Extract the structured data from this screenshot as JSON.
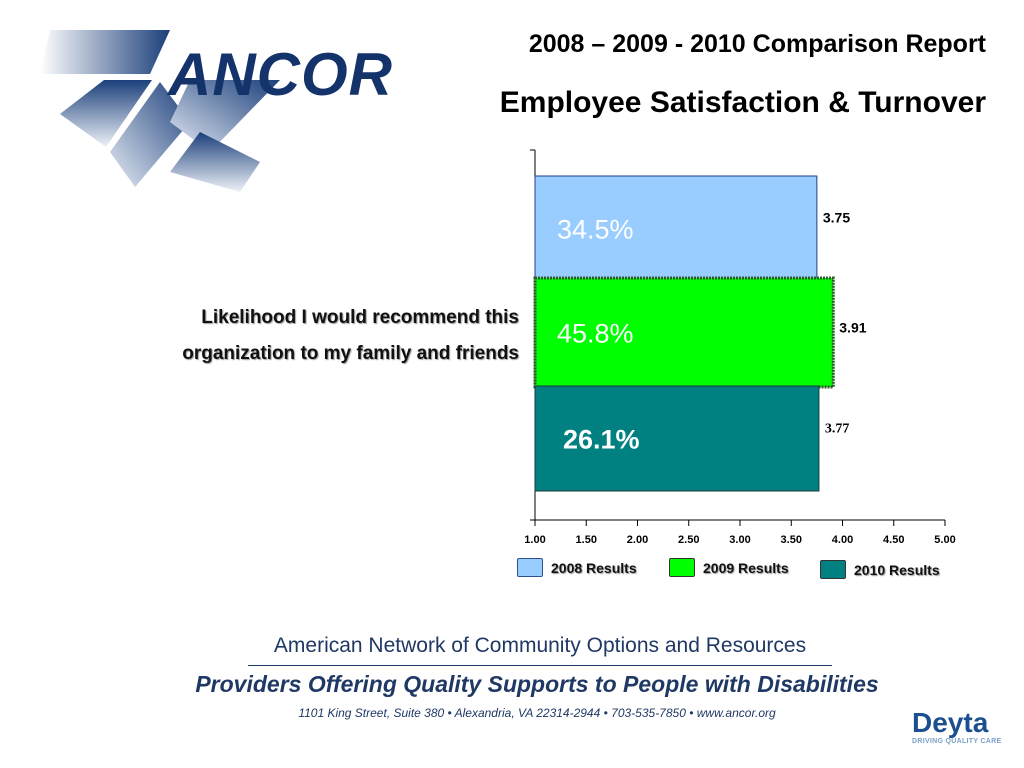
{
  "logo": {
    "text": "ANCOR"
  },
  "title": {
    "line1": "2008 – 2009 - 2010 Comparison Report",
    "line2": "Employee Satisfaction & Turnover"
  },
  "question": {
    "line1": "Likelihood I would recommend this",
    "line2": "organization to my family and friends"
  },
  "chart_data": {
    "type": "bar",
    "orientation": "horizontal",
    "title": "",
    "xlabel": "",
    "ylabel": "",
    "xlim": [
      1.0,
      5.0
    ],
    "x_ticks": [
      "1.00",
      "1.50",
      "2.00",
      "2.50",
      "3.00",
      "3.50",
      "4.00",
      "4.50",
      "5.00"
    ],
    "categories": [
      "Likelihood I would recommend this organization to my family and friends"
    ],
    "series": [
      {
        "name": "2008 Results",
        "value": 3.75,
        "value_label": "3.75",
        "inner_label": "34.5%",
        "color": "#99ccff"
      },
      {
        "name": "2009 Results",
        "value": 3.91,
        "value_label": "3.91",
        "inner_label": "45.8%",
        "color": "#00ff00"
      },
      {
        "name": "2010 Results",
        "value": 3.77,
        "value_label": "3.77",
        "inner_label": "26.1%",
        "color": "#008080"
      }
    ],
    "legend_position": "bottom",
    "grid": false
  },
  "footer": {
    "org": "American Network of Community Options and Resources",
    "tagline": "Providers Offering Quality Supports to People with Disabilities",
    "address": "1101 King Street, Suite 380 • Alexandria, VA 22314-2944 • 703-535-7850 • www.ancor.org"
  },
  "deyta": {
    "name": "Deyta",
    "tagline": "DRIVING QUALITY CARE"
  }
}
